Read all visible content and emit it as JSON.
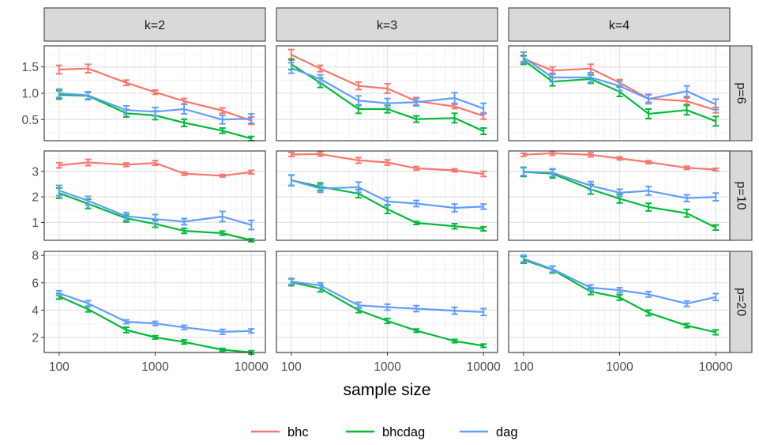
{
  "chart_data": {
    "type": "line",
    "xlabel": "sample size",
    "x_scale": "log10",
    "x": [
      100,
      200,
      500,
      1000,
      2000,
      5000,
      10000
    ],
    "x_ticks": [
      100,
      1000,
      10000
    ],
    "x_tick_labels": [
      "100",
      "1000",
      "10000"
    ],
    "column_labels": [
      "k=2",
      "k=3",
      "k=4"
    ],
    "row_labels": [
      "p=6",
      "p=10",
      "p=20"
    ],
    "row_ylim": [
      [
        0.1,
        1.9
      ],
      [
        0.3,
        3.8
      ],
      [
        0.9,
        8.3
      ]
    ],
    "row_yticks": [
      [
        0.5,
        1.0,
        1.5
      ],
      [
        1,
        2,
        3
      ],
      [
        2,
        4,
        6,
        8
      ]
    ],
    "row_ytick_labels": [
      [
        "0.5",
        "1.0",
        "1.5"
      ],
      [
        "1",
        "2",
        "3"
      ],
      [
        "2",
        "4",
        "6",
        "8"
      ]
    ],
    "error_bars": true,
    "legend_position": "bottom",
    "legend": [
      {
        "name": "bhc",
        "color": "#F8766D"
      },
      {
        "name": "bhcdag",
        "color": "#00BA38"
      },
      {
        "name": "dag",
        "color": "#619CFF"
      }
    ],
    "panels": [
      {
        "row": "p=6",
        "col": "k=2",
        "series": [
          {
            "name": "bhc",
            "values": [
              1.45,
              1.47,
              1.2,
              1.02,
              0.85,
              0.67,
              0.48
            ],
            "errors": [
              0.08,
              0.08,
              0.05,
              0.04,
              0.05,
              0.05,
              0.07
            ]
          },
          {
            "name": "bhcdag",
            "values": [
              0.97,
              0.95,
              0.62,
              0.58,
              0.44,
              0.29,
              0.14
            ],
            "errors": [
              0.08,
              0.07,
              0.07,
              0.08,
              0.07,
              0.05,
              0.04
            ]
          },
          {
            "name": "dag",
            "values": [
              1.0,
              0.96,
              0.68,
              0.65,
              0.7,
              0.5,
              0.52
            ],
            "errors": [
              0.08,
              0.07,
              0.08,
              0.08,
              0.09,
              0.08,
              0.09
            ]
          }
        ]
      },
      {
        "row": "p=6",
        "col": "k=3",
        "series": [
          {
            "name": "bhc",
            "values": [
              1.73,
              1.47,
              1.14,
              1.09,
              0.85,
              0.75,
              0.57
            ],
            "errors": [
              0.1,
              0.06,
              0.07,
              0.09,
              0.07,
              0.04,
              0.06
            ]
          },
          {
            "name": "bhcdag",
            "values": [
              1.55,
              1.2,
              0.7,
              0.7,
              0.51,
              0.53,
              0.28
            ],
            "errors": [
              0.1,
              0.09,
              0.08,
              0.07,
              0.06,
              0.09,
              0.06
            ]
          },
          {
            "name": "dag",
            "values": [
              1.48,
              1.27,
              0.86,
              0.81,
              0.83,
              0.91,
              0.71
            ],
            "errors": [
              0.1,
              0.08,
              0.09,
              0.09,
              0.07,
              0.1,
              0.1
            ]
          }
        ]
      },
      {
        "row": "p=6",
        "col": "k=4",
        "series": [
          {
            "name": "bhc",
            "values": [
              1.66,
              1.43,
              1.47,
              1.2,
              0.9,
              0.85,
              0.68
            ],
            "errors": [
              0.06,
              0.07,
              0.08,
              0.06,
              0.07,
              0.06,
              0.05
            ]
          },
          {
            "name": "bhcdag",
            "values": [
              1.63,
              1.22,
              1.27,
              1.03,
              0.61,
              0.68,
              0.47
            ],
            "errors": [
              0.08,
              0.08,
              0.08,
              0.09,
              0.09,
              0.09,
              0.09
            ]
          },
          {
            "name": "dag",
            "values": [
              1.68,
              1.3,
              1.3,
              1.14,
              0.89,
              1.04,
              0.79
            ],
            "errors": [
              0.1,
              0.08,
              0.09,
              0.09,
              0.09,
              0.1,
              0.1
            ]
          }
        ]
      },
      {
        "row": "p=10",
        "col": "k=2",
        "series": [
          {
            "name": "bhc",
            "values": [
              3.24,
              3.35,
              3.26,
              3.33,
              2.91,
              2.83,
              2.97
            ],
            "errors": [
              0.1,
              0.12,
              0.07,
              0.09,
              0.06,
              0.05,
              0.07
            ]
          },
          {
            "name": "bhcdag",
            "values": [
              2.15,
              1.73,
              1.16,
              0.94,
              0.67,
              0.58,
              0.3
            ],
            "errors": [
              0.2,
              0.18,
              0.14,
              0.13,
              0.1,
              0.08,
              0.06
            ]
          },
          {
            "name": "dag",
            "values": [
              2.25,
              1.85,
              1.24,
              1.13,
              1.03,
              1.23,
              0.9
            ],
            "errors": [
              0.2,
              0.17,
              0.15,
              0.18,
              0.12,
              0.2,
              0.18
            ]
          }
        ]
      },
      {
        "row": "p=10",
        "col": "k=3",
        "series": [
          {
            "name": "bhc",
            "values": [
              3.66,
              3.68,
              3.43,
              3.35,
              3.12,
              3.04,
              2.9
            ],
            "errors": [
              0.08,
              0.08,
              0.11,
              0.1,
              0.07,
              0.06,
              0.1
            ]
          },
          {
            "name": "bhcdag",
            "values": [
              2.65,
              2.4,
              2.13,
              1.52,
              0.98,
              0.85,
              0.75
            ],
            "errors": [
              0.21,
              0.15,
              0.16,
              0.17,
              0.06,
              0.1,
              0.08
            ]
          },
          {
            "name": "dag",
            "values": [
              2.65,
              2.33,
              2.38,
              1.82,
              1.74,
              1.57,
              1.62
            ],
            "errors": [
              0.2,
              0.15,
              0.2,
              0.16,
              0.12,
              0.15,
              0.1
            ]
          }
        ]
      },
      {
        "row": "p=10",
        "col": "k=4",
        "series": [
          {
            "name": "bhc",
            "values": [
              3.65,
              3.71,
              3.65,
              3.51,
              3.36,
              3.14,
              3.07
            ],
            "errors": [
              0.06,
              0.08,
              0.08,
              0.06,
              0.06,
              0.06,
              0.05
            ]
          },
          {
            "name": "bhcdag",
            "values": [
              2.98,
              2.91,
              2.3,
              1.93,
              1.6,
              1.36,
              0.8
            ],
            "errors": [
              0.18,
              0.17,
              0.19,
              0.17,
              0.15,
              0.15,
              0.1
            ]
          },
          {
            "name": "dag",
            "values": [
              2.99,
              2.95,
              2.44,
              2.16,
              2.24,
              1.95,
              2.0
            ],
            "errors": [
              0.15,
              0.15,
              0.16,
              0.14,
              0.17,
              0.13,
              0.15
            ]
          }
        ]
      },
      {
        "row": "p=20",
        "col": "k=2",
        "series": [
          {
            "name": "bhcdag",
            "values": [
              5.01,
              4.07,
              2.55,
              2.01,
              1.67,
              1.1,
              0.91
            ],
            "errors": [
              0.2,
              0.2,
              0.2,
              0.12,
              0.15,
              0.1,
              0.12
            ]
          },
          {
            "name": "dag",
            "values": [
              5.24,
              4.49,
              3.15,
              3.03,
              2.74,
              2.41,
              2.48
            ],
            "errors": [
              0.18,
              0.2,
              0.14,
              0.15,
              0.15,
              0.18,
              0.15
            ]
          }
        ]
      },
      {
        "row": "p=20",
        "col": "k=3",
        "series": [
          {
            "name": "bhcdag",
            "values": [
              6.04,
              5.59,
              4.0,
              3.21,
              2.5,
              1.74,
              1.4
            ],
            "errors": [
              0.25,
              0.25,
              0.18,
              0.18,
              0.12,
              0.12,
              0.12
            ]
          },
          {
            "name": "dag",
            "values": [
              6.1,
              5.8,
              4.35,
              4.22,
              4.11,
              3.96,
              3.86
            ],
            "errors": [
              0.22,
              0.2,
              0.22,
              0.22,
              0.22,
              0.25,
              0.25
            ]
          }
        ]
      },
      {
        "row": "p=20",
        "col": "k=4",
        "series": [
          {
            "name": "bhcdag",
            "values": [
              7.68,
              6.96,
              5.36,
              4.93,
              3.8,
              2.87,
              2.38
            ],
            "errors": [
              0.25,
              0.25,
              0.22,
              0.2,
              0.2,
              0.15,
              0.18
            ]
          },
          {
            "name": "dag",
            "values": [
              7.77,
              7.0,
              5.64,
              5.46,
              5.16,
              4.47,
              4.96
            ],
            "errors": [
              0.25,
              0.22,
              0.2,
              0.18,
              0.2,
              0.2,
              0.25
            ]
          }
        ]
      }
    ]
  }
}
